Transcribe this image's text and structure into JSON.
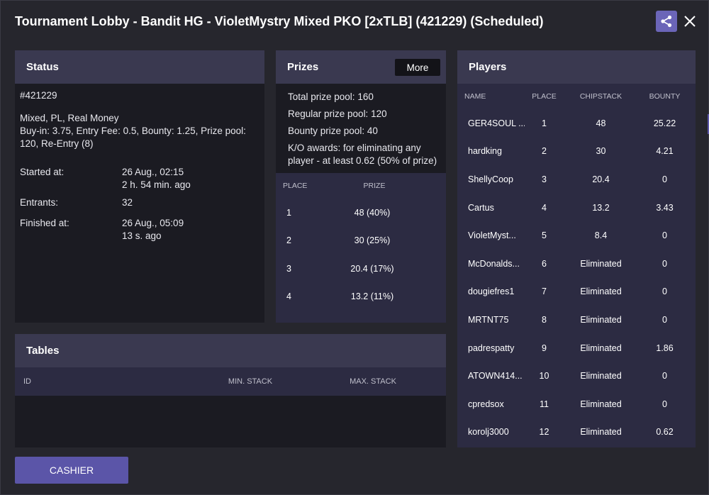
{
  "window": {
    "title": "Tournament Lobby - Bandit HG - VioletMystry Mixed PKO [2xTLB] (421229) (Scheduled)",
    "share_icon": "share-icon",
    "close_icon": "close-icon"
  },
  "status": {
    "heading": "Status",
    "id": "#421229",
    "game": "Mixed, PL, Real Money",
    "details": "Buy-in: 3.75, Entry Fee: 0.5, Bounty: 1.25, Prize pool: 120, Re-Entry (8)",
    "started_label": "Started at:",
    "started_value": "26 Aug., 02:15",
    "started_ago": "2 h. 54 min. ago",
    "entrants_label": "Entrants:",
    "entrants_value": "32",
    "finished_label": "Finished at:",
    "finished_value": "26 Aug., 05:09",
    "finished_ago": "13 s. ago"
  },
  "prizes": {
    "heading": "Prizes",
    "more_label": "More",
    "total_label": "Total prize pool:",
    "total_value": "160",
    "regular_label": "Regular prize pool:",
    "regular_value": "120",
    "bounty_label": "Bounty prize pool:",
    "bounty_value": "40",
    "ko_label": "K/O awards:",
    "ko_value": "for eliminating any player - at least 0.62 (50% of prize)",
    "columns": {
      "place": "PLACE",
      "prize": "PRIZE"
    },
    "rows": [
      {
        "place": "1",
        "prize": "48 (40%)"
      },
      {
        "place": "2",
        "prize": "30 (25%)"
      },
      {
        "place": "3",
        "prize": "20.4 (17%)"
      },
      {
        "place": "4",
        "prize": "13.2 (11%)"
      }
    ]
  },
  "tables": {
    "heading": "Tables",
    "columns": {
      "id": "ID",
      "min_stack": "MIN. STACK",
      "max_stack": "MAX. STACK"
    }
  },
  "players": {
    "heading": "Players",
    "columns": {
      "name": "NAME",
      "place": "PLACE",
      "chipstack": "CHIPSTACK",
      "bounty": "BOUNTY"
    },
    "rows": [
      {
        "name": "GER4SOUL ...",
        "place": "1",
        "chipstack": "48",
        "bounty": "25.22"
      },
      {
        "name": "hardking",
        "place": "2",
        "chipstack": "30",
        "bounty": "4.21"
      },
      {
        "name": "ShellyCoop",
        "place": "3",
        "chipstack": "20.4",
        "bounty": "0"
      },
      {
        "name": "Cartus",
        "place": "4",
        "chipstack": "13.2",
        "bounty": "3.43"
      },
      {
        "name": "VioletMyst...",
        "place": "5",
        "chipstack": "8.4",
        "bounty": "0"
      },
      {
        "name": "McDonalds...",
        "place": "6",
        "chipstack": "Eliminated",
        "bounty": "0"
      },
      {
        "name": "dougiefres1",
        "place": "7",
        "chipstack": "Eliminated",
        "bounty": "0"
      },
      {
        "name": "MRTNT75",
        "place": "8",
        "chipstack": "Eliminated",
        "bounty": "0"
      },
      {
        "name": "padrespatty",
        "place": "9",
        "chipstack": "Eliminated",
        "bounty": "1.86"
      },
      {
        "name": "ATOWN414...",
        "place": "10",
        "chipstack": "Eliminated",
        "bounty": "0"
      },
      {
        "name": "cpredsox",
        "place": "11",
        "chipstack": "Eliminated",
        "bounty": "0"
      },
      {
        "name": "korolj3000",
        "place": "12",
        "chipstack": "Eliminated",
        "bounty": "0.62"
      }
    ]
  },
  "footer": {
    "cashier_label": "CASHIER"
  },
  "colors": {
    "accent": "#5b55a8",
    "share_button": "#6b65b8",
    "panel_header": "#3a3950",
    "panel_body": "#1b1b22"
  }
}
